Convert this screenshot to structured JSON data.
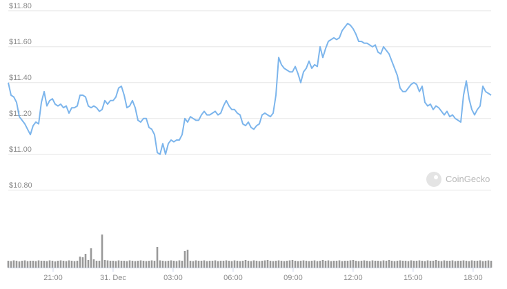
{
  "chart_data": {
    "type": "line",
    "watermark": "CoinGecko",
    "color": "#7cb5ec",
    "volume_color": "#999999",
    "grid": true,
    "xlim": [
      18.76,
      42.9
    ],
    "xticks": [
      {
        "value": 21,
        "label": "21:00"
      },
      {
        "value": 24,
        "label": "31. Dec"
      },
      {
        "value": 27,
        "label": "03:00"
      },
      {
        "value": 30,
        "label": "06:00"
      },
      {
        "value": 33,
        "label": "09:00"
      },
      {
        "value": 36,
        "label": "12:00"
      },
      {
        "value": 39,
        "label": "15:00"
      },
      {
        "value": 42,
        "label": "18:00"
      }
    ],
    "ylim": [
      10.73,
      11.83
    ],
    "yticks": [
      {
        "value": 10.8,
        "label": "$10.80"
      },
      {
        "value": 11.0,
        "label": "$11.00"
      },
      {
        "value": 11.2,
        "label": "$11.20"
      },
      {
        "value": 11.4,
        "label": "$11.40"
      },
      {
        "value": 11.6,
        "label": "$11.60"
      },
      {
        "value": 11.8,
        "label": "$11.80"
      }
    ],
    "y2lim": [
      0,
      100
    ],
    "values": [
      11.4,
      11.33,
      11.32,
      11.29,
      11.21,
      11.19,
      11.17,
      11.14,
      11.11,
      11.16,
      11.18,
      11.17,
      11.29,
      11.35,
      11.27,
      11.3,
      11.31,
      11.28,
      11.27,
      11.28,
      11.26,
      11.27,
      11.23,
      11.26,
      11.26,
      11.27,
      11.33,
      11.33,
      11.32,
      11.27,
      11.26,
      11.27,
      11.26,
      11.24,
      11.25,
      11.3,
      11.28,
      11.3,
      11.3,
      11.32,
      11.37,
      11.38,
      11.33,
      11.26,
      11.27,
      11.3,
      11.26,
      11.19,
      11.18,
      11.2,
      11.2,
      11.15,
      11.14,
      11.11,
      11.01,
      11.0,
      11.06,
      11.0,
      11.06,
      11.08,
      11.07,
      11.08,
      11.08,
      11.11,
      11.2,
      11.18,
      11.21,
      11.2,
      11.19,
      11.19,
      11.22,
      11.24,
      11.22,
      11.22,
      11.23,
      11.24,
      11.22,
      11.23,
      11.27,
      11.3,
      11.27,
      11.25,
      11.25,
      11.23,
      11.22,
      11.17,
      11.16,
      11.18,
      11.15,
      11.14,
      11.16,
      11.17,
      11.22,
      11.23,
      11.22,
      11.21,
      11.23,
      11.33,
      11.54,
      11.5,
      11.48,
      11.47,
      11.46,
      11.46,
      11.49,
      11.45,
      11.4,
      11.46,
      11.48,
      11.52,
      11.48,
      11.5,
      11.49,
      11.6,
      11.54,
      11.59,
      11.63,
      11.64,
      11.65,
      11.64,
      11.65,
      11.69,
      11.71,
      11.73,
      11.72,
      11.7,
      11.67,
      11.63,
      11.63,
      11.62,
      11.62,
      11.61,
      11.6,
      11.61,
      11.57,
      11.56,
      11.6,
      11.58,
      11.56,
      11.52,
      11.48,
      11.44,
      11.37,
      11.35,
      11.35,
      11.37,
      11.39,
      11.4,
      11.39,
      11.35,
      11.38,
      11.29,
      11.27,
      11.28,
      11.25,
      11.27,
      11.26,
      11.24,
      11.22,
      11.24,
      11.21,
      11.22,
      11.2,
      11.19,
      11.18,
      11.33,
      11.41,
      11.31,
      11.25,
      11.22,
      11.25,
      11.27,
      11.38,
      11.35,
      11.34,
      11.33
    ],
    "volumes": [
      20,
      19,
      21,
      20,
      18,
      20,
      21,
      19,
      20,
      20,
      19,
      21,
      20,
      20,
      19,
      21,
      20,
      18,
      20,
      21,
      20,
      19,
      21,
      20,
      19,
      20,
      32,
      30,
      40,
      22,
      56,
      24,
      20,
      20,
      96,
      22,
      21,
      20,
      20,
      19,
      21,
      20,
      20,
      19,
      21,
      20,
      19,
      20,
      21,
      20,
      19,
      20,
      21,
      20,
      60,
      21,
      20,
      19,
      20,
      21,
      20,
      19,
      21,
      20,
      48,
      52,
      20,
      19,
      21,
      20,
      20,
      21,
      19,
      20,
      20,
      21,
      19,
      20,
      20,
      21,
      20,
      19,
      21,
      20,
      19,
      20,
      22,
      20,
      19,
      21,
      20,
      19,
      20,
      21,
      22,
      20,
      19,
      20,
      21,
      20,
      19,
      20,
      21,
      22,
      20,
      19,
      20,
      21,
      20,
      19,
      20,
      21,
      19,
      20,
      22,
      20,
      21,
      19,
      20,
      20,
      21,
      19,
      20,
      20,
      21,
      22,
      20,
      19,
      20,
      21,
      20,
      19,
      21,
      20,
      20,
      19,
      21,
      20,
      22,
      20,
      19,
      20,
      21,
      20,
      20,
      19,
      21,
      20,
      20,
      21,
      20,
      19,
      21,
      20,
      20,
      22,
      20,
      19,
      21,
      20,
      20,
      21,
      19,
      20,
      20,
      21,
      20,
      19,
      21,
      20,
      20,
      21,
      19,
      20,
      21,
      20
    ]
  }
}
